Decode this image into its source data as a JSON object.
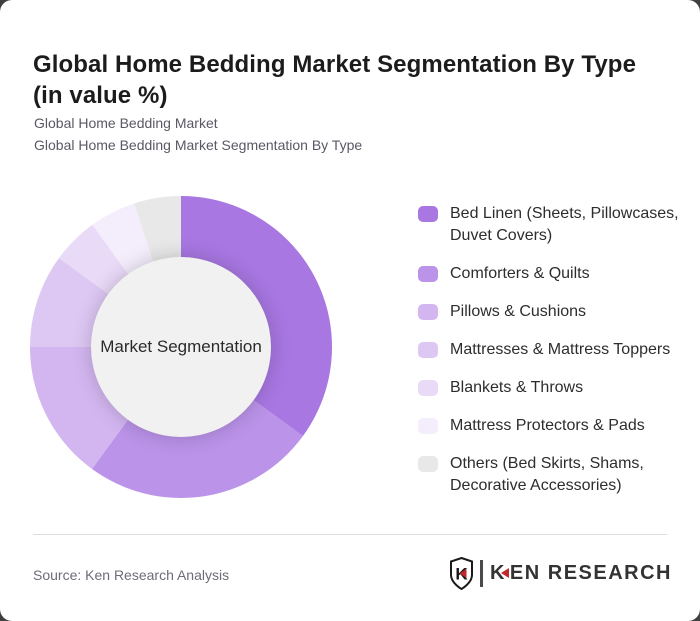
{
  "header": {
    "title_lines": [
      "Global Home Bedding Market Segmentation By Type",
      "(in value %)"
    ],
    "subtitle_lines": [
      "Global Home Bedding Market",
      "Global Home Bedding Market Segmentation By Type"
    ]
  },
  "chart_data": {
    "type": "pie",
    "variant": "donut",
    "title": "Global Home Bedding Market Segmentation By Type (in value %)",
    "unit": "value %",
    "center_label": "Market Segmentation",
    "legend_position": "right",
    "start_angle_deg": 0,
    "direction": "clockwise",
    "inner_radius_ratio": 0.59,
    "segments": [
      {
        "label": "Bed Linen (Sheets, Pillowcases, Duvet Covers)",
        "label_lines": [
          "Bed Linen (Sheets, Pillowcases,",
          "Duvet Covers)"
        ],
        "value": 35,
        "color": "#a877e2"
      },
      {
        "label": "Comforters & Quilts",
        "label_lines": [
          "Comforters & Quilts"
        ],
        "value": 25,
        "color": "#bb93e9"
      },
      {
        "label": "Pillows & Cushions",
        "label_lines": [
          "Pillows & Cushions"
        ],
        "value": 15,
        "color": "#d3b6f0"
      },
      {
        "label": "Mattresses & Mattress Toppers",
        "label_lines": [
          "Mattresses & Mattress Toppers"
        ],
        "value": 10,
        "color": "#ddc8f4"
      },
      {
        "label": "Blankets & Throws",
        "label_lines": [
          "Blankets & Throws"
        ],
        "value": 5,
        "color": "#e9daf8"
      },
      {
        "label": "Mattress Protectors & Pads",
        "label_lines": [
          "Mattress Protectors & Pads"
        ],
        "value": 5,
        "color": "#f4edfc"
      },
      {
        "label": "Others (Bed Skirts, Shams, Decorative Accessories)",
        "label_lines": [
          "Others (Bed Skirts, Shams,",
          "Decorative Accessories)"
        ],
        "value": 5,
        "color": "#e8e8e9"
      }
    ]
  },
  "footer": {
    "source": "Source: Ken Research Analysis",
    "logo": {
      "shield_letter": "K",
      "wordmark_first_letter": "K",
      "wordmark_rest": "EN RESEARCH",
      "accent_color": "#c1272d"
    }
  }
}
